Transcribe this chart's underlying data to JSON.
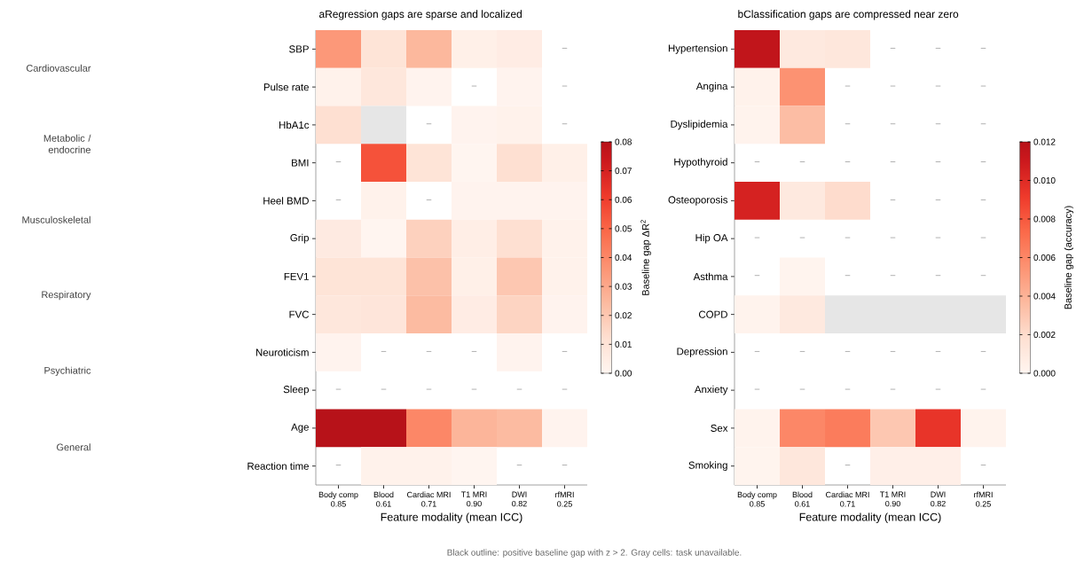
{
  "chart_data": [
    {
      "type": "heatmap",
      "title": "aRegression gaps are sparse and localized",
      "xlabel": "Feature modality (mean ICC)",
      "categories": [
        "Body comp 0.85",
        "Blood 0.61",
        "Cardiac MRI 0.71",
        "T1 MRI 0.90",
        "DWI 0.82",
        "rfMRI 0.25"
      ],
      "y_categories": [
        "SBP",
        "Pulse rate",
        "HbA1c",
        "BMI",
        "Heel BMD",
        "Grip",
        "FEV1",
        "FVC",
        "Neuroticism",
        "Sleep",
        "Age",
        "Reaction time"
      ],
      "cells": [
        [
          0.035,
          0.01,
          0.025,
          0.003,
          0.005,
          null
        ],
        [
          0.002,
          0.008,
          0.001,
          null,
          0.001,
          null
        ],
        [
          0.012,
          null,
          null,
          0.001,
          0.002,
          null
        ],
        [
          null,
          0.055,
          0.01,
          0,
          0.012,
          0.003
        ],
        [
          null,
          0.002,
          null,
          0.001,
          0.001,
          0.001
        ],
        [
          0.006,
          0,
          0.017,
          0.004,
          0.012,
          0.002
        ],
        [
          0.01,
          0.01,
          0.022,
          0.003,
          0.02,
          0.002
        ],
        [
          0.008,
          0.009,
          0.024,
          0.005,
          0.016,
          0.001
        ],
        [
          0.001,
          null,
          null,
          null,
          0.001,
          null
        ],
        [
          null,
          null,
          null,
          null,
          null,
          null
        ],
        [
          0.08,
          0.08,
          0.04,
          0.026,
          0.024,
          0.001
        ],
        [
          null,
          0.002,
          0.002,
          0,
          null,
          null
        ]
      ],
      "cell_labels": [
        [
          null,
          null,
          null,
          null,
          null,
          "–"
        ],
        [
          null,
          null,
          null,
          "–",
          null,
          "–"
        ],
        [
          null,
          null,
          "–",
          null,
          null,
          "–"
        ],
        [
          "–",
          null,
          null,
          null,
          null,
          null
        ],
        [
          "–",
          null,
          "–",
          null,
          null,
          null
        ],
        [
          null,
          null,
          null,
          null,
          null,
          null
        ],
        [
          null,
          null,
          null,
          null,
          null,
          null
        ],
        [
          null,
          null,
          null,
          null,
          null,
          null
        ],
        [
          null,
          "–",
          "–",
          "–",
          null,
          "–"
        ],
        [
          "–",
          "–",
          "–",
          "–",
          "–",
          "–"
        ],
        [
          null,
          null,
          null,
          null,
          null,
          null
        ],
        [
          "–",
          null,
          null,
          null,
          "–",
          "–"
        ]
      ],
      "clim": [
        0,
        0.08
      ],
      "cticks": [
        {
          "value": 0,
          "label": "0.00"
        },
        {
          "value": 0.01,
          "label": "0.01"
        },
        {
          "value": 0.02,
          "label": "0.02"
        },
        {
          "value": 0.03,
          "label": "0.03"
        },
        {
          "value": 0.04,
          "label": "0.04"
        },
        {
          "value": 0.05,
          "label": "0.05"
        },
        {
          "value": 0.06,
          "label": "0.06"
        },
        {
          "value": 0.07,
          "label": "0.07"
        },
        {
          "value": 0.08,
          "label": "0.08"
        }
      ],
      "clabel": "Baseline gap ΔR$^{2}$",
      "annotations": [
        "Cardiovascular",
        "Metabolic / endocrine",
        "Musculoskeletal",
        "Respiratory",
        "Psychiatric",
        "General"
      ]
    },
    {
      "type": "heatmap",
      "title": "bClassification gaps are compressed near zero",
      "xlabel": "Feature modality (mean ICC)",
      "categories": [
        "Body comp 0.85",
        "Blood 0.61",
        "Cardiac MRI 0.71",
        "T1 MRI 0.90",
        "DWI 0.82",
        "rfMRI 0.25"
      ],
      "y_categories": [
        "Hypertension",
        "Angina",
        "Dyslipidemia",
        "Hypothyroid",
        "Osteoporosis",
        "Hip OA",
        "Asthma",
        "COPD",
        "Depression",
        "Anxiety",
        "Sex",
        "Smoking"
      ],
      "cells": [
        [
          0.0115,
          0.001,
          0.0012,
          null,
          null,
          null
        ],
        [
          0.0003,
          0.0055,
          null,
          null,
          null,
          null
        ],
        [
          0.0002,
          0.0035,
          null,
          null,
          null,
          null
        ],
        [
          null,
          null,
          null,
          null,
          null,
          null
        ],
        [
          0.0105,
          0.001,
          0.002,
          null,
          null,
          null
        ],
        [
          null,
          null,
          null,
          null,
          null,
          null
        ],
        [
          null,
          0.0001,
          null,
          null,
          null,
          null
        ],
        [
          0.0002,
          0.001,
          null,
          null,
          null,
          null
        ],
        [
          null,
          null,
          null,
          null,
          null,
          null
        ],
        [
          null,
          null,
          null,
          null,
          null,
          null
        ],
        [
          0.0002,
          0.006,
          0.0065,
          0.003,
          0.0095,
          0.0002
        ],
        [
          0.0001,
          0.0012,
          null,
          0.0005,
          0.0005,
          null
        ]
      ],
      "cell_labels": [
        [
          null,
          null,
          null,
          "–",
          "–",
          "–"
        ],
        [
          null,
          null,
          "–",
          "–",
          "–",
          "–"
        ],
        [
          null,
          null,
          "–",
          "–",
          "–",
          "–"
        ],
        [
          "–",
          "–",
          "–",
          "–",
          "–",
          "–"
        ],
        [
          null,
          null,
          null,
          "–",
          "–",
          "–"
        ],
        [
          "–",
          "–",
          "–",
          "–",
          "–",
          "–"
        ],
        [
          "–",
          null,
          "–",
          "–",
          "–",
          "–"
        ],
        [
          null,
          null,
          null,
          null,
          null,
          null
        ],
        [
          "–",
          "–",
          "–",
          "–",
          "–",
          "–"
        ],
        [
          "–",
          "–",
          "–",
          "–",
          "–",
          "–"
        ],
        [
          null,
          null,
          null,
          null,
          null,
          null
        ],
        [
          null,
          null,
          "–",
          null,
          null,
          "–"
        ]
      ],
      "clim": [
        0,
        0.012
      ],
      "cticks": [
        {
          "value": 0,
          "label": "0.000"
        },
        {
          "value": 0.002,
          "label": "0.002"
        },
        {
          "value": 0.004,
          "label": "0.004"
        },
        {
          "value": 0.006,
          "label": "0.006"
        },
        {
          "value": 0.008,
          "label": "0.008"
        },
        {
          "value": 0.01,
          "label": "0.010"
        },
        {
          "value": 0.012,
          "label": "0.012"
        }
      ],
      "clabel": "Baseline gap (accuracy)",
      "annotations": [
        "Black outline: positive baseline gap with z > 2. Gray cells: task unavailable."
      ]
    }
  ]
}
